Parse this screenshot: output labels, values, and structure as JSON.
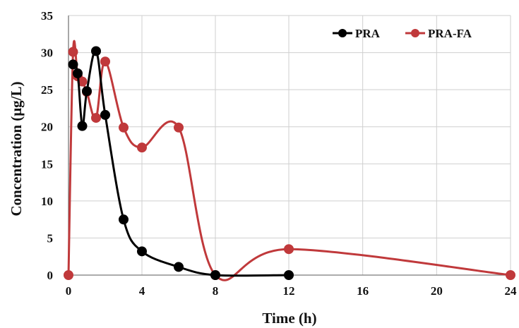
{
  "chart_data": {
    "type": "line",
    "xlabel": "Time (h)",
    "ylabel": "Concentration (μg/L)",
    "xlim": [
      0,
      24
    ],
    "ylim": [
      0,
      35
    ],
    "x_ticks": [
      0,
      4,
      8,
      12,
      16,
      20,
      24
    ],
    "y_ticks": [
      0,
      5,
      10,
      15,
      20,
      25,
      30,
      35
    ],
    "x_axis_scale": "piecewise: 0-12 and 12-24 drawn at different spacing",
    "grid": "both",
    "legend": "top-right",
    "smoothed_lines": true,
    "series": [
      {
        "name": "PRA",
        "color": "#000000",
        "points": [
          {
            "x": 0.25,
            "y": 28.4
          },
          {
            "x": 0.5,
            "y": 27.2
          },
          {
            "x": 0.75,
            "y": 20.1
          },
          {
            "x": 1.0,
            "y": 24.8
          },
          {
            "x": 1.5,
            "y": 30.2
          },
          {
            "x": 2.0,
            "y": 21.6
          },
          {
            "x": 3.0,
            "y": 7.5
          },
          {
            "x": 4.0,
            "y": 3.2
          },
          {
            "x": 6.0,
            "y": 1.1
          },
          {
            "x": 8.0,
            "y": 0
          },
          {
            "x": 12.0,
            "y": 0
          }
        ]
      },
      {
        "name": "PRA-FA",
        "color": "#c0393b",
        "points": [
          {
            "x": 0,
            "y": 0
          },
          {
            "x": 0.25,
            "y": 30.1
          },
          {
            "x": 0.5,
            "y": 26.8
          },
          {
            "x": 0.75,
            "y": 26.1
          },
          {
            "x": 1.0,
            "y": 24.7
          },
          {
            "x": 1.5,
            "y": 21.2
          },
          {
            "x": 2.0,
            "y": 28.8
          },
          {
            "x": 3.0,
            "y": 19.9
          },
          {
            "x": 4.0,
            "y": 17.2
          },
          {
            "x": 6.0,
            "y": 19.9
          },
          {
            "x": 8.0,
            "y": 0
          },
          {
            "x": 12.0,
            "y": 3.5
          },
          {
            "x": 24.0,
            "y": 0
          }
        ]
      }
    ]
  }
}
